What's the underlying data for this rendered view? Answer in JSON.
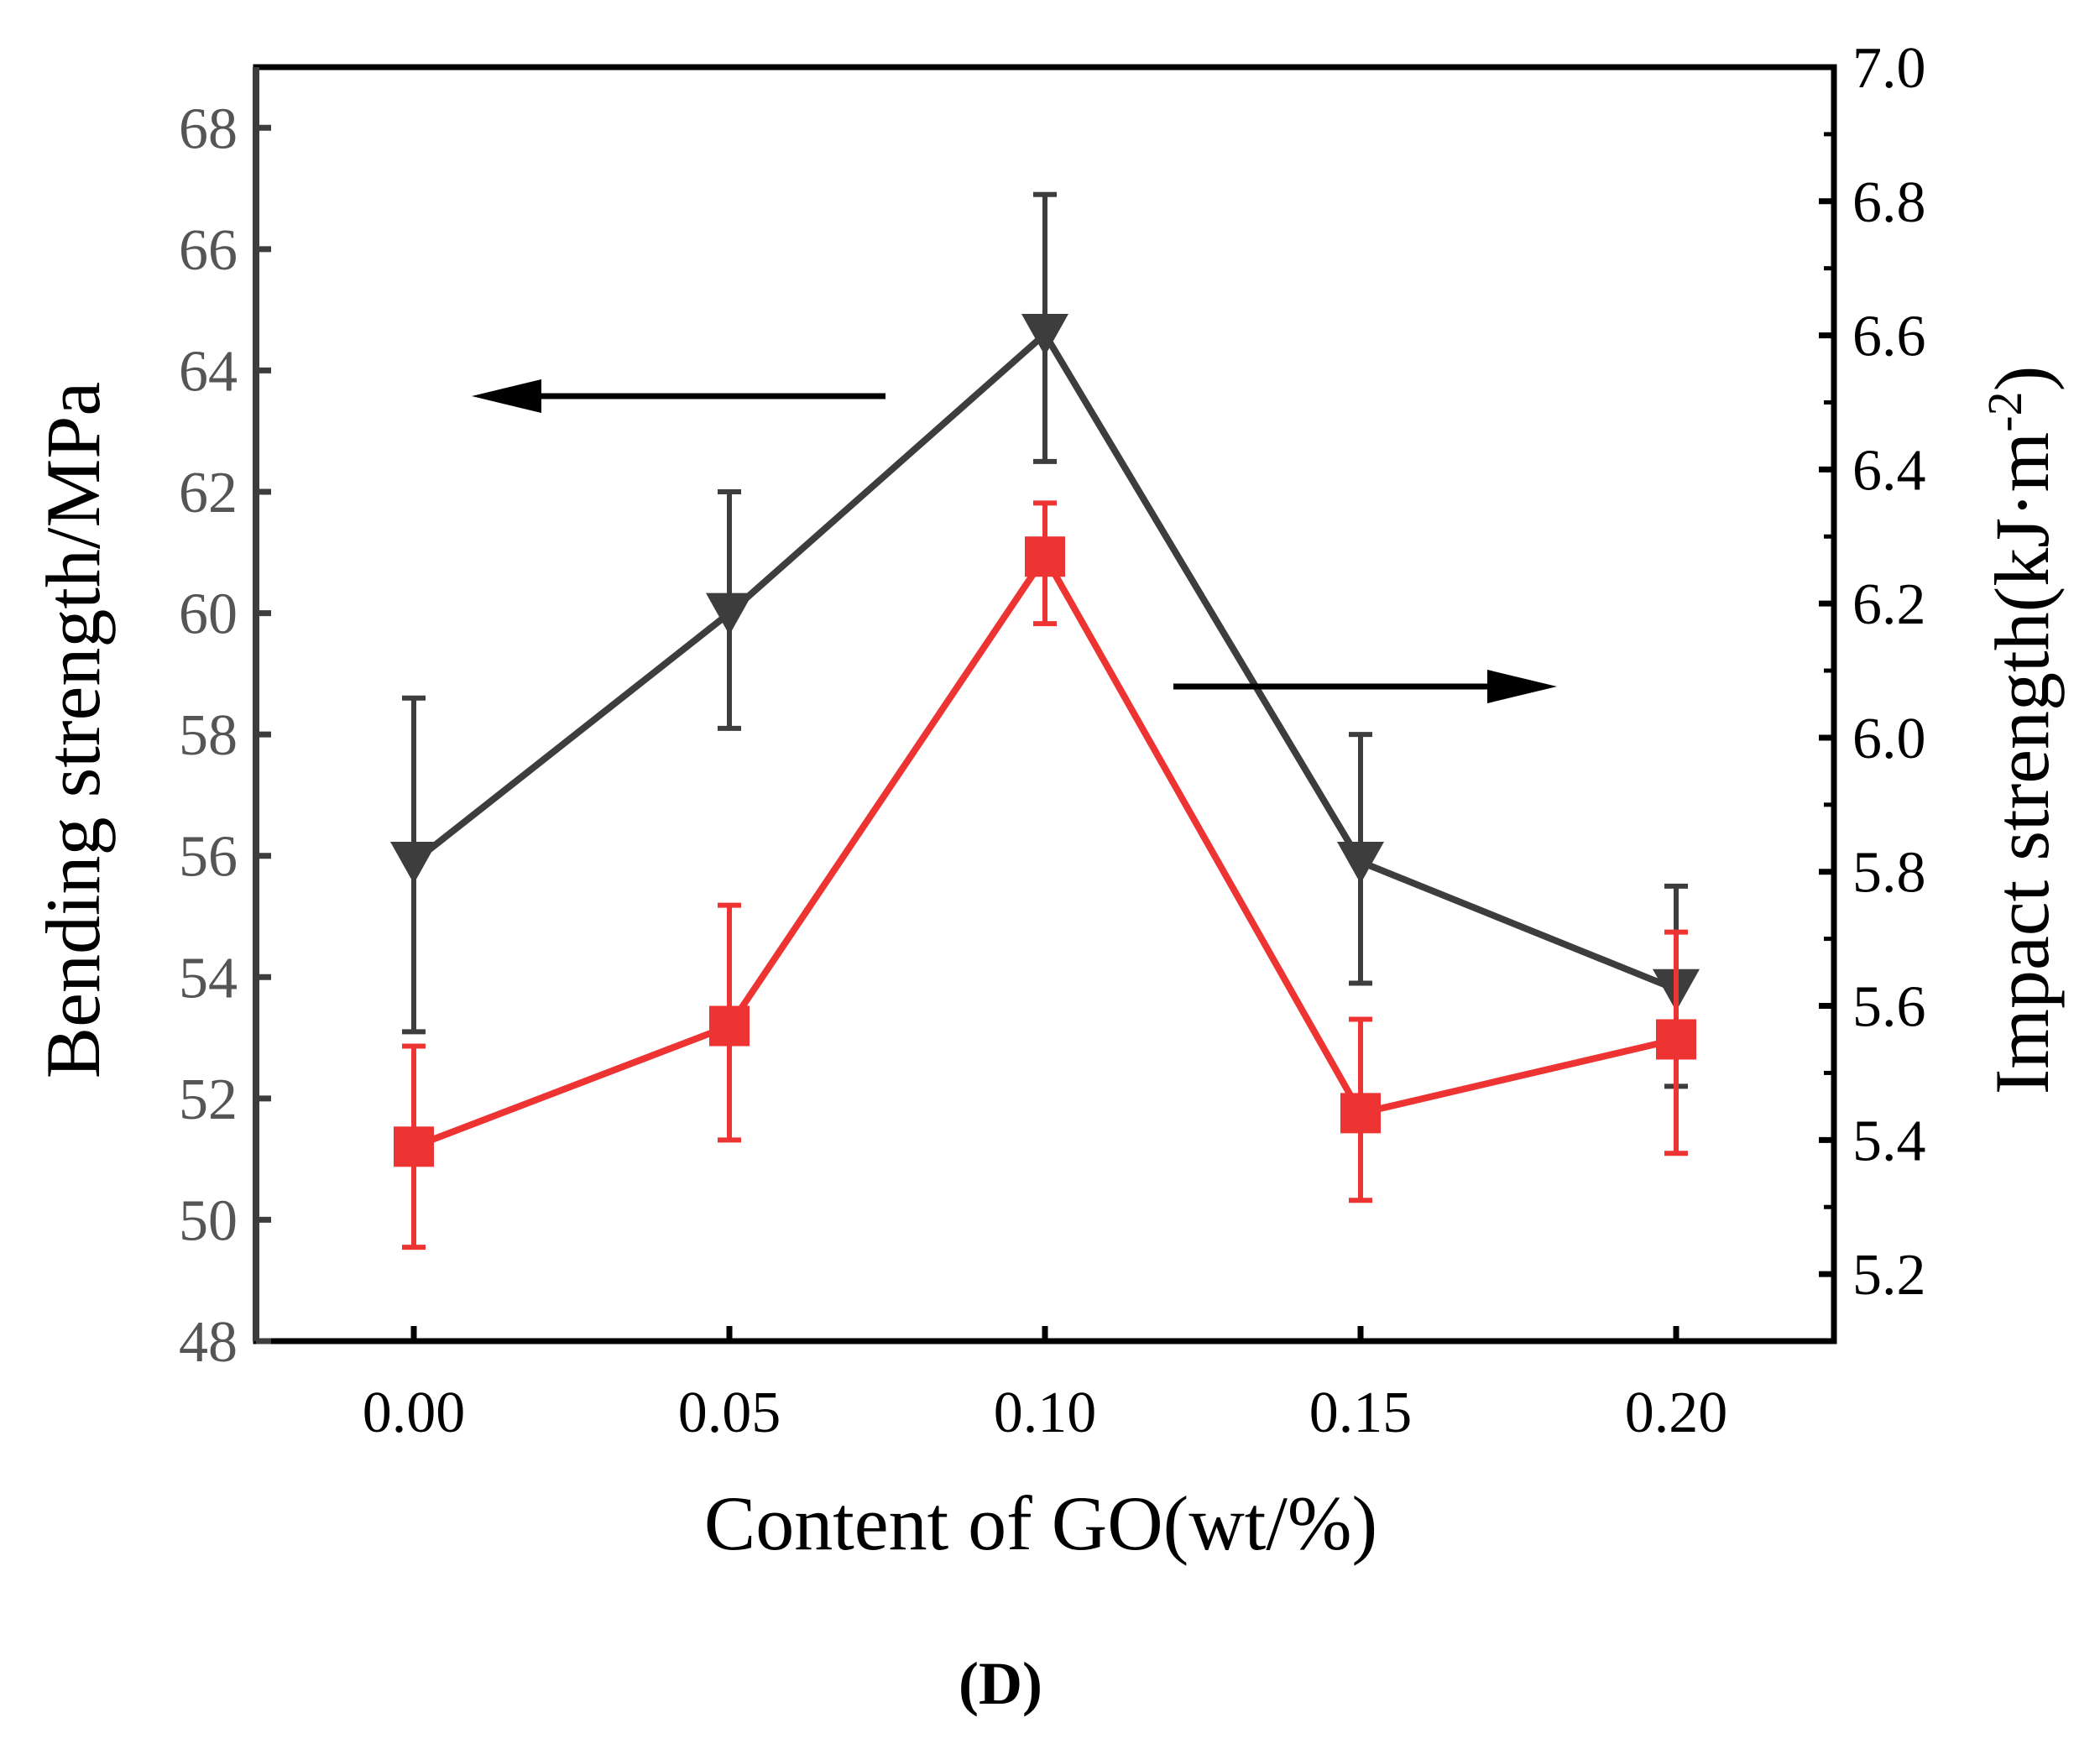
{
  "chart_data": {
    "type": "line",
    "title": "",
    "xlabel": "Content of GO(wt/%)",
    "ylabel": "Bending strength/MPa",
    "y2label": "Impact strength(kJ·m-2)",
    "panel_label": "(D)",
    "x": [
      0.0,
      0.05,
      0.1,
      0.15,
      0.2
    ],
    "x_tick_labels": [
      "0.00",
      "0.05",
      "0.10",
      "0.15",
      "0.20"
    ],
    "xlim": [
      -0.025,
      0.225
    ],
    "ylim": [
      48,
      69
    ],
    "y_ticks": [
      48,
      50,
      52,
      54,
      56,
      58,
      60,
      62,
      64,
      66,
      68
    ],
    "y2lim": [
      5.1,
      7.0
    ],
    "y2_ticks": [
      "5.2",
      "5.4",
      "5.6",
      "5.8",
      "6.0",
      "6.2",
      "6.4",
      "6.6",
      "6.8",
      "7.0"
    ],
    "series": [
      {
        "name": "Bending strength",
        "axis": "left",
        "color": "#3d3d3d",
        "marker": "triangle-down",
        "values": [
          55.9,
          60.0,
          64.6,
          55.9,
          53.8
        ],
        "err_high": [
          58.6,
          62.0,
          66.9,
          58.0,
          55.5
        ],
        "err_low": [
          53.1,
          58.1,
          62.5,
          53.9,
          52.2
        ]
      },
      {
        "name": "Impact strength",
        "axis": "right",
        "color": "#ee3333",
        "marker": "square",
        "values": [
          5.39,
          5.57,
          6.27,
          5.44,
          5.55
        ],
        "err_high": [
          5.54,
          5.75,
          6.35,
          5.58,
          5.71
        ],
        "err_low": [
          5.24,
          5.4,
          6.17,
          5.31,
          5.38
        ]
      }
    ],
    "annotations": [
      {
        "type": "arrow",
        "direction": "left",
        "meaning": "left axis"
      },
      {
        "type": "arrow",
        "direction": "right",
        "meaning": "right axis"
      }
    ]
  }
}
